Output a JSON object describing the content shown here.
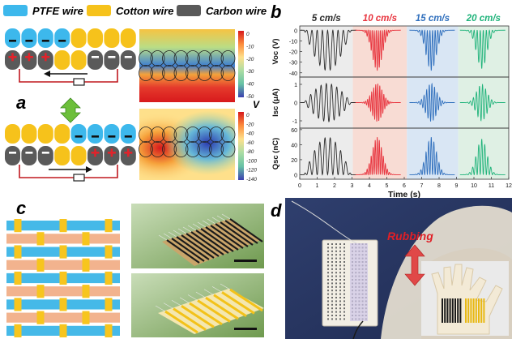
{
  "legend": {
    "ptfe_label": "PTFE wire",
    "cotton_label": "Cotton wire",
    "carbon_label": "Carbon wire",
    "ptfe_color": "#3db8ec",
    "cotton_color": "#f6c21b",
    "carbon_color": "#5a5a5a"
  },
  "panels": {
    "a": "a",
    "b": "b",
    "c": "c",
    "d": "d"
  },
  "colorbar_top": {
    "unit": "V",
    "ticks": [
      "0",
      "-10",
      "-20",
      "-30",
      "-40",
      "-50"
    ]
  },
  "colorbar_bottom": {
    "ticks": [
      "0",
      "-20",
      "-40",
      "-60",
      "-80",
      "-100",
      "-120",
      "-140"
    ]
  },
  "chart_data": {
    "type": "line",
    "columns": [
      {
        "label": "5 cm/s",
        "color": "#2b2b2b",
        "bg": "#ececec"
      },
      {
        "label": "10 cm/s",
        "color": "#e8343e",
        "bg": "#f8dcd4"
      },
      {
        "label": "15 cm/s",
        "color": "#2f6fbd",
        "bg": "#d9e6f4"
      },
      {
        "label": "20 cm/s",
        "color": "#1fb37a",
        "bg": "#dff0e4"
      }
    ],
    "rows": [
      {
        "ylabel": "Voc (V)",
        "ticks": [
          "0",
          "-10",
          "-20",
          "-30",
          "-40"
        ],
        "ylim": [
          -44,
          4
        ]
      },
      {
        "ylabel": "Isc (μA)",
        "ticks": [
          "1",
          "0",
          "-1"
        ],
        "ylim": [
          -1.4,
          1.4
        ]
      },
      {
        "ylabel": "Qsc (nC)",
        "ticks": [
          "60",
          "40",
          "20",
          "0"
        ],
        "ylim": [
          -6,
          62
        ]
      }
    ],
    "xlabel": "Time (s)",
    "xticks": [
      "0",
      "1",
      "2",
      "3",
      "4",
      "5",
      "6",
      "7",
      "8",
      "9",
      "10",
      "11",
      "12"
    ],
    "xlim": [
      0,
      12
    ]
  },
  "photo_d": {
    "label": "Rubbing"
  }
}
